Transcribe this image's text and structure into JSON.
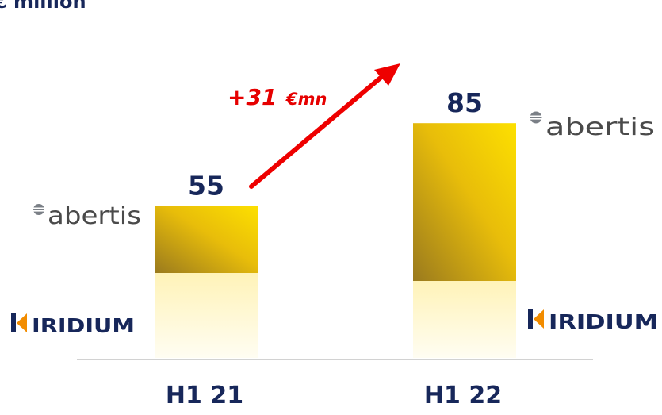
{
  "title": "€ million",
  "chart_data": {
    "type": "bar",
    "title": "€ million",
    "categories": [
      "H1 21",
      "H1 22"
    ],
    "series": [
      {
        "segments": [
          {
            "label": "abertis",
            "values": [
              55,
              85
            ]
          },
          {
            "label": "IRIDIUM",
            "values": [
              null,
              null
            ]
          }
        ]
      }
    ],
    "values": [
      55,
      85
    ],
    "value_labels": [
      "55",
      "85"
    ],
    "annotation": {
      "value": "+31",
      "unit": "€mn",
      "from": "H1 21",
      "to": "H1 22"
    },
    "xlabel": "",
    "ylabel": "",
    "legend": "none"
  },
  "brands": {
    "top": "abertis",
    "bottom": "IRIDIUM"
  },
  "colors": {
    "bar_gold": "#f2c200",
    "bar_dark": "#a8871c",
    "bar_pale": "#fff6c8",
    "arrow": "#ee0000",
    "label": "#17275a"
  }
}
